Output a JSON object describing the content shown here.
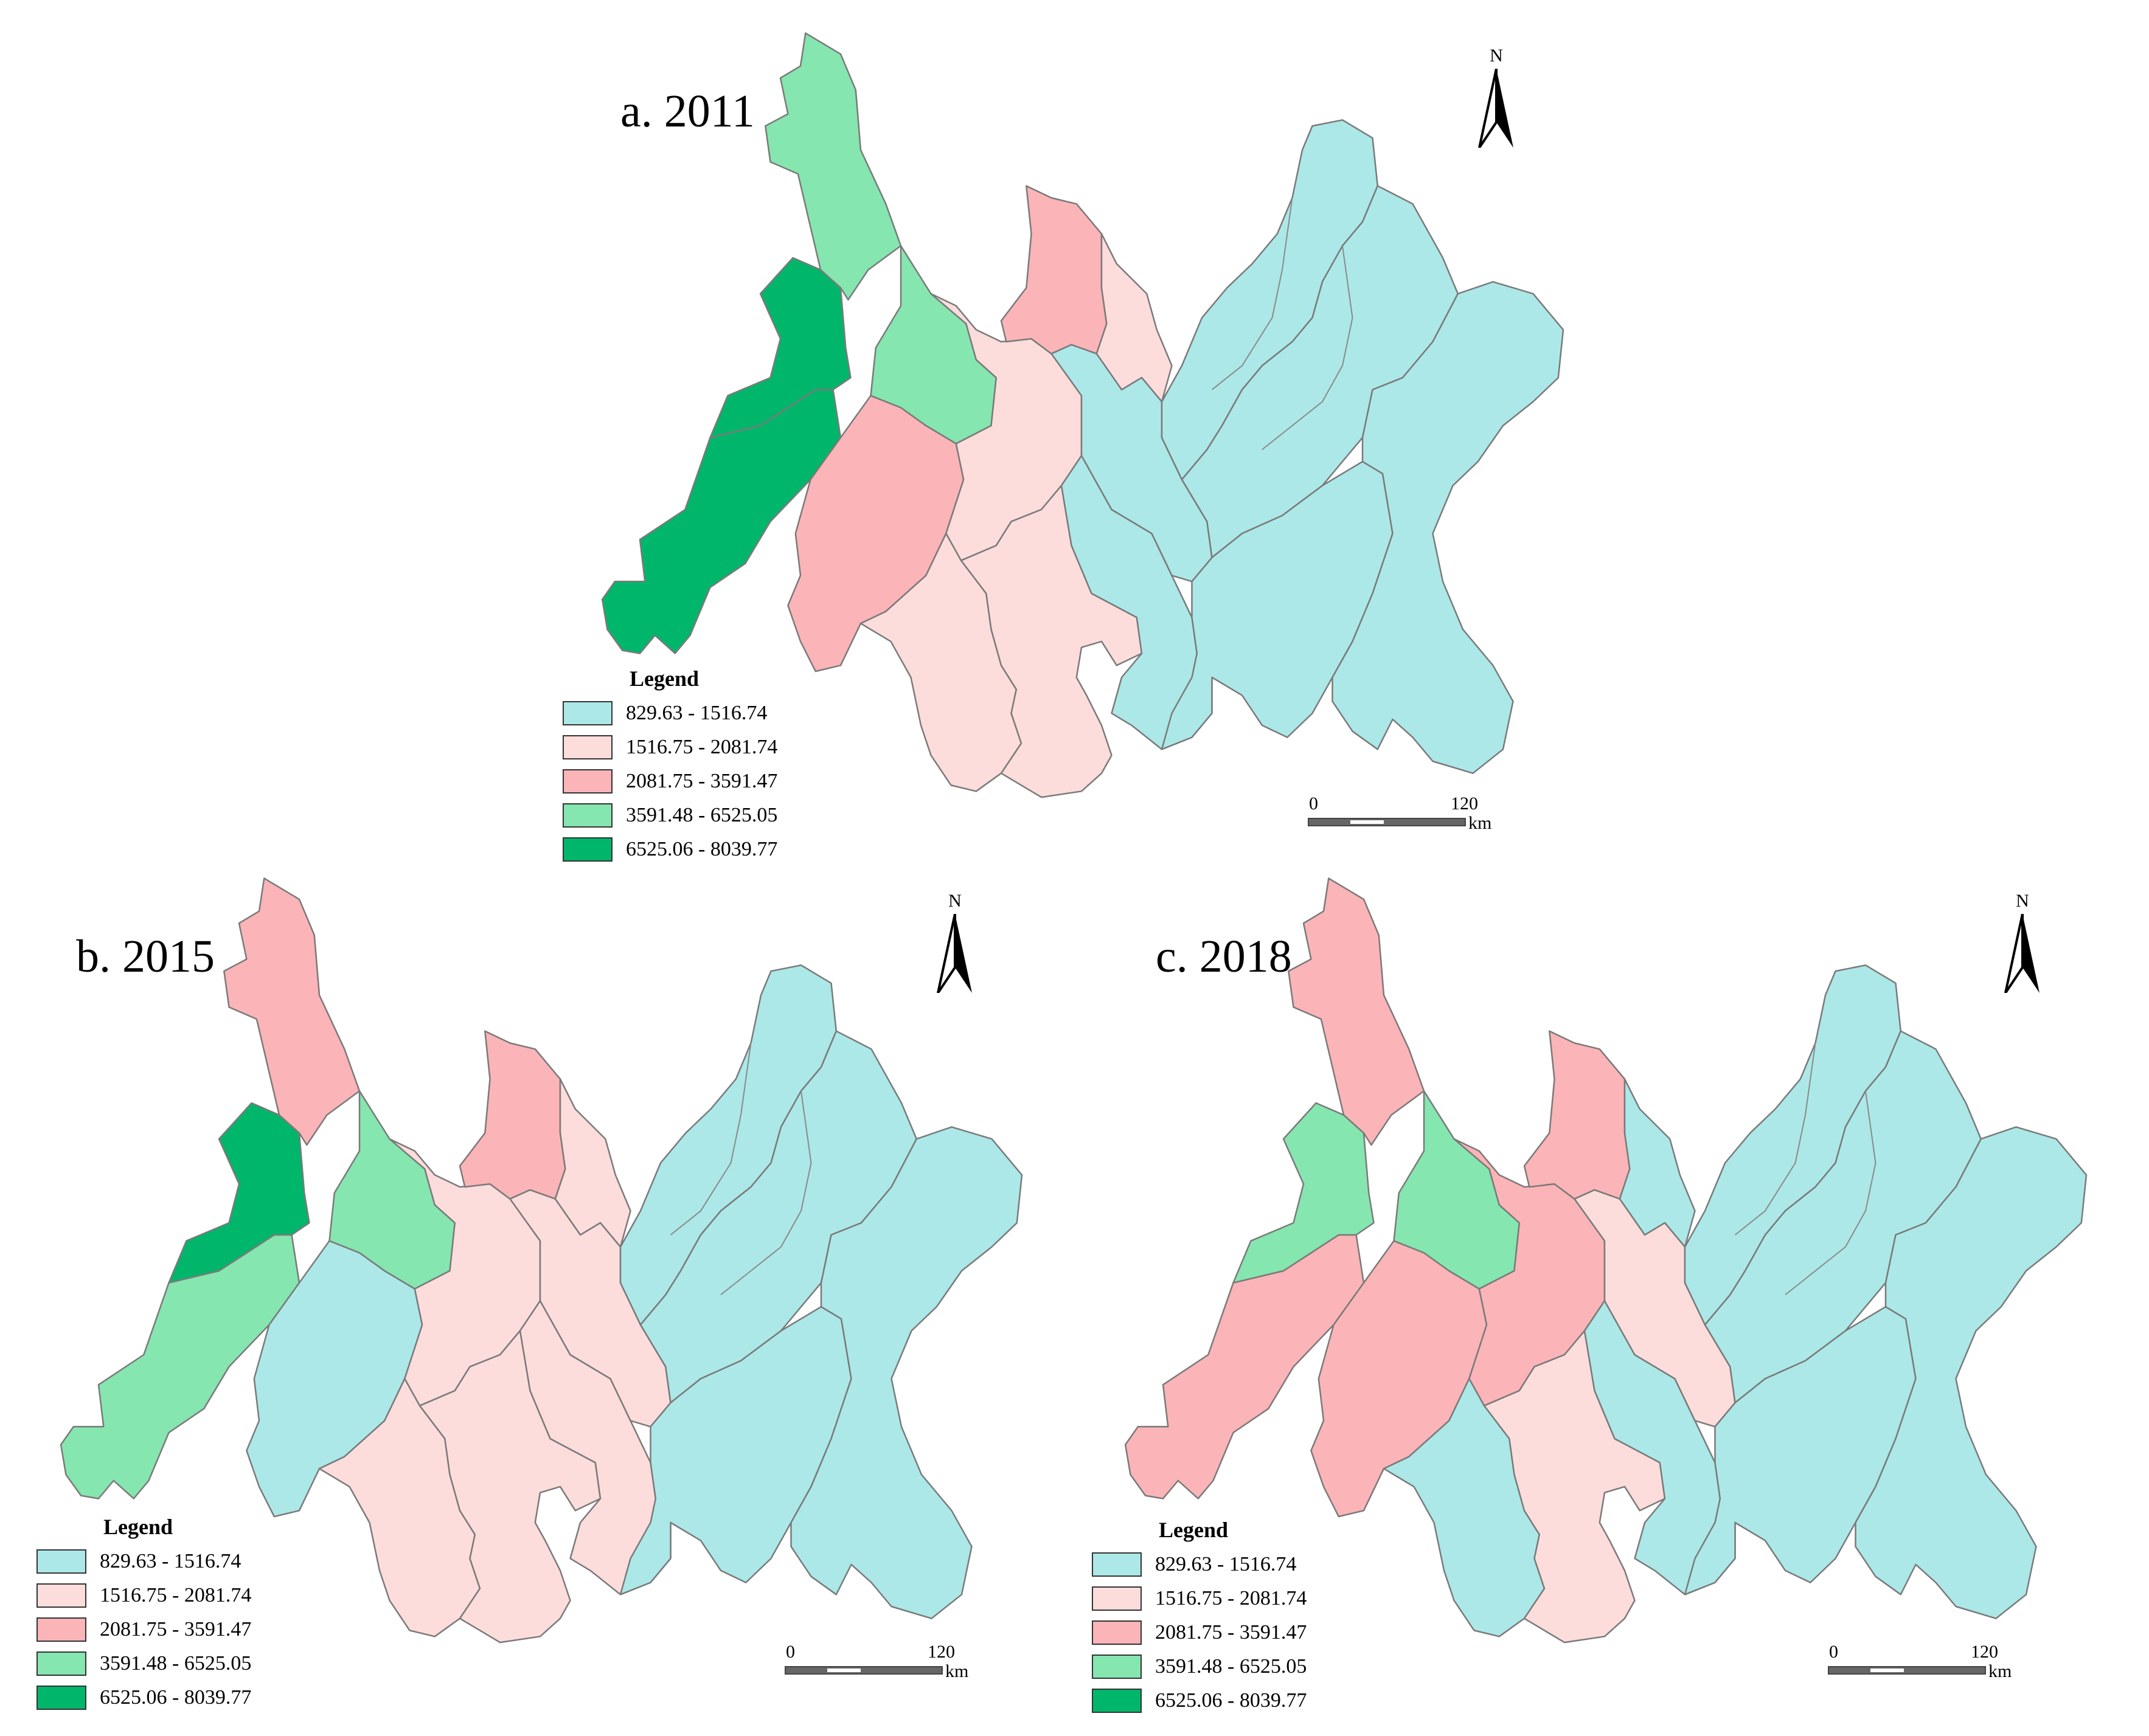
{
  "panels": [
    {
      "title": "a. 2011",
      "classes": {
        "A": 4,
        "B": 4,
        "C": 3,
        "D": 2,
        "E": 3,
        "F": 1,
        "G": 2,
        "H": 1,
        "I": 1,
        "J": 1,
        "K": 0,
        "L": 0,
        "M": 0,
        "N": 0,
        "O": 0,
        "P": 0
      }
    },
    {
      "title": "b. 2015",
      "classes": {
        "A": 3,
        "B": 4,
        "C": 2,
        "D": 0,
        "E": 3,
        "F": 1,
        "G": 2,
        "H": 1,
        "I": 1,
        "J": 1,
        "K": 1,
        "L": 1,
        "M": 0,
        "N": 0,
        "O": 0,
        "P": 0
      }
    },
    {
      "title": "c. 2018",
      "classes": {
        "A": 2,
        "B": 3,
        "C": 2,
        "D": 2,
        "E": 3,
        "F": 2,
        "G": 2,
        "H": 0,
        "I": 0,
        "J": 1,
        "K": 0,
        "L": 1,
        "M": 0,
        "N": 0,
        "O": 0,
        "P": 0
      }
    }
  ],
  "legend": {
    "title": "Legend",
    "classes": [
      {
        "label": "829.63 - 1516.74",
        "color": "#ace8e8"
      },
      {
        "label": "1516.75 - 2081.74",
        "color": "#fddcdc"
      },
      {
        "label": "2081.75 - 3591.47",
        "color": "#fbb4b7"
      },
      {
        "label": "3591.48 - 6525.05",
        "color": "#85e6b0"
      },
      {
        "label": "6525.06 - 8039.77",
        "color": "#00b66a"
      }
    ]
  },
  "north_arrow": {
    "label": "N"
  },
  "scale_bar": {
    "start": "0",
    "end": "120",
    "unit": "km"
  }
}
